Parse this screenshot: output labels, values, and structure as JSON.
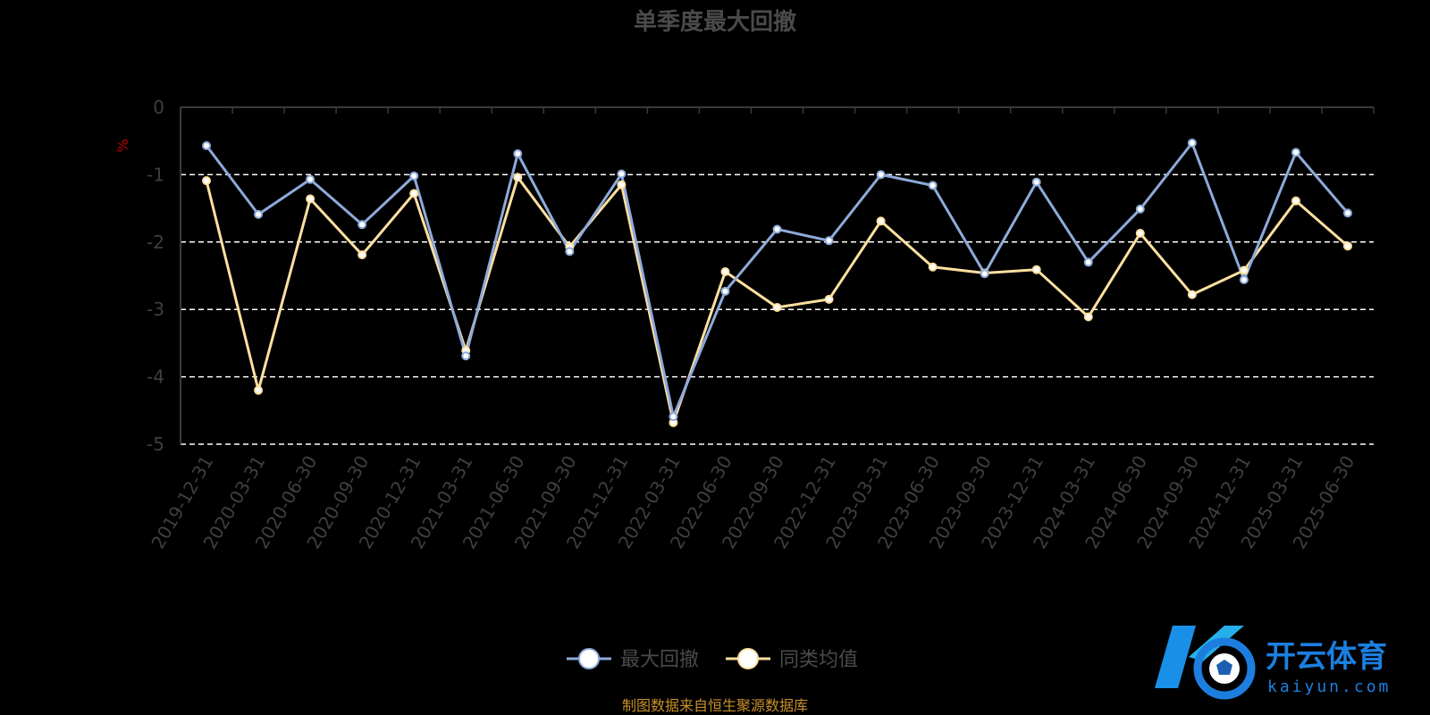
{
  "chart_data": {
    "type": "line",
    "title": "单季度最大回撤",
    "ylabel": "%",
    "xlabel": "",
    "ylim": [
      -5,
      0
    ],
    "yticks": [
      "0",
      "-1",
      "-2",
      "-3",
      "-4",
      "-5"
    ],
    "grid": "dashed-horizontal",
    "legend_position": "bottom-center",
    "categories": [
      "2019-12-31",
      "2020-03-31",
      "2020-06-30",
      "2020-09-30",
      "2020-12-31",
      "2021-03-31",
      "2021-06-30",
      "2021-09-30",
      "2021-12-31",
      "2022-03-31",
      "2022-06-30",
      "2022-09-30",
      "2022-12-31",
      "2023-03-31",
      "2023-06-30",
      "2023-09-30",
      "2023-12-31",
      "2024-03-31",
      "2024-06-30",
      "2024-09-30",
      "2024-12-31",
      "2025-03-31",
      "2025-06-30"
    ],
    "series": [
      {
        "name": "最大回撤",
        "color": "#8eaadb",
        "values": [
          -0.57,
          -1.59,
          -1.07,
          -1.74,
          -1.02,
          -3.69,
          -0.69,
          -2.14,
          -0.99,
          -4.59,
          -2.73,
          -1.81,
          -1.98,
          -1.0,
          -1.16,
          -2.47,
          -1.11,
          -2.3,
          -1.51,
          -0.53,
          -2.56,
          -0.67,
          -1.57
        ]
      },
      {
        "name": "同类均值",
        "color": "#ffe0a0",
        "values": [
          -1.09,
          -4.2,
          -1.36,
          -2.19,
          -1.28,
          -3.61,
          -1.04,
          -2.07,
          -1.15,
          -4.68,
          -2.44,
          -2.97,
          -2.85,
          -1.69,
          -2.37,
          -2.46,
          -2.41,
          -3.11,
          -1.87,
          -2.78,
          -2.42,
          -1.39,
          -2.06
        ]
      }
    ]
  },
  "source_note": "制图数据来自恒生聚源数据库",
  "watermark": {
    "name": "开云体育",
    "sub": "kaiyun.com"
  }
}
